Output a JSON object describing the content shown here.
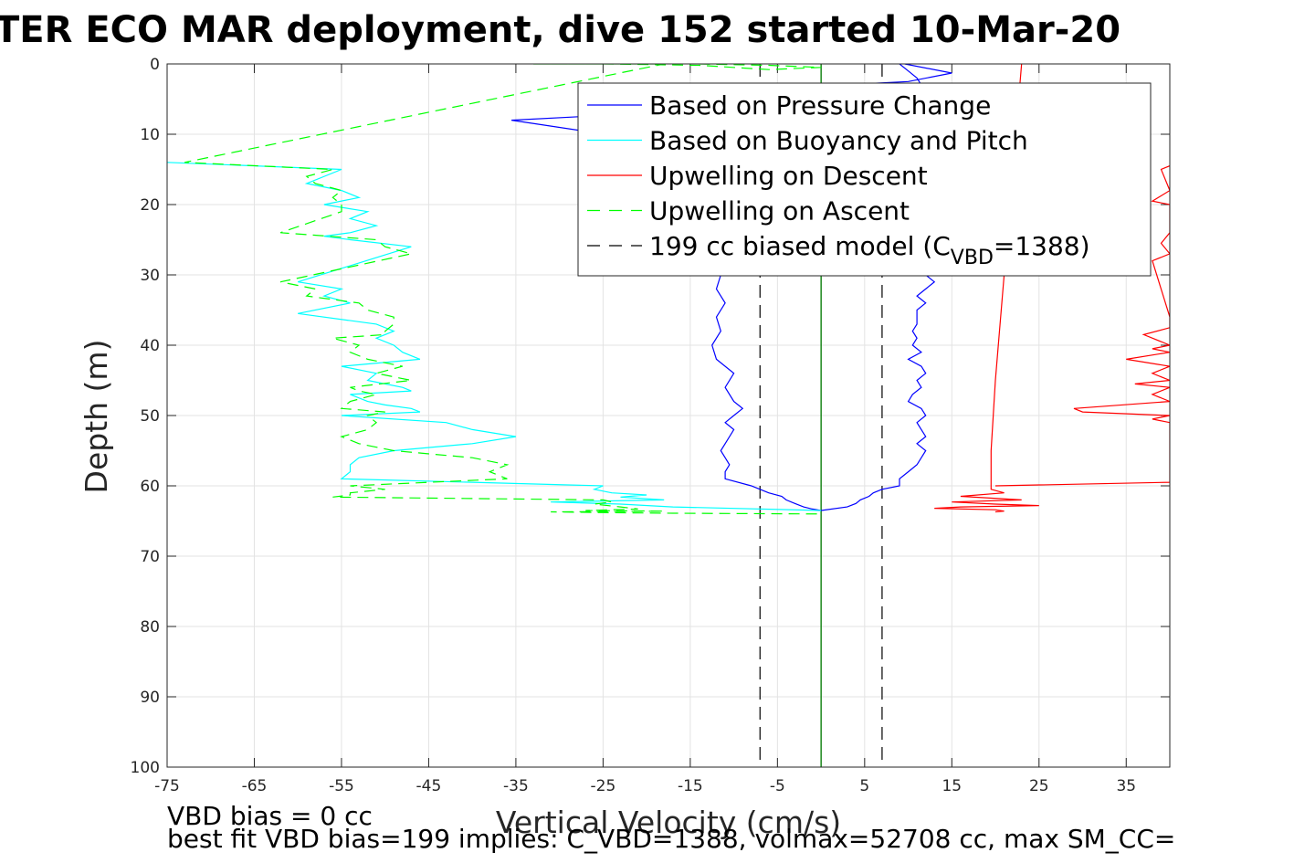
{
  "chart_data": {
    "type": "line",
    "title": "TER ECO MAR deployment, dive 152 started 10-Mar-20",
    "xlabel": "Vertical Velocity (cm/s)",
    "ylabel": "Depth (m)",
    "xlim": [
      -75,
      40
    ],
    "ylim": [
      0,
      100
    ],
    "y_reversed": true,
    "grid": true,
    "xticks": [
      -75,
      -65,
      -55,
      -45,
      -35,
      -25,
      -15,
      -5,
      5,
      15,
      25,
      35
    ],
    "yticks": [
      0,
      10,
      20,
      30,
      40,
      50,
      60,
      70,
      80,
      90,
      100
    ],
    "legend": {
      "placement": "top-right",
      "entries": [
        {
          "label": "Based on Pressure Change",
          "color": "#0000ff",
          "dash": "solid"
        },
        {
          "label": "Based on Buoyancy and Pitch",
          "color": "#00ffff",
          "dash": "solid"
        },
        {
          "label": "Upwelling on Descent",
          "color": "#ff0000",
          "dash": "solid"
        },
        {
          "label": "Upwelling on Ascent",
          "color": "#00ff00",
          "dash": "dashed"
        },
        {
          "label": "199 cc biased model (C",
          "sub": "VBD",
          "suffix": "=1388)",
          "color": "#000000",
          "dash": "dashed"
        }
      ]
    },
    "series": [
      {
        "name": "Based on Pressure Change",
        "color": "#0000ff",
        "dash": "solid",
        "x": [
          9.6,
          15,
          10,
          2,
          4,
          1,
          -3,
          -12,
          -35.5,
          -14,
          -12,
          -12,
          -12,
          -12,
          -11.5,
          -12,
          -11,
          -12,
          -11.5,
          -12.5,
          -12,
          -10,
          -11,
          -10,
          -9,
          -10,
          -11,
          -10,
          -11,
          -11.5,
          -11,
          -10.5,
          -11,
          -11,
          -8,
          -6,
          -4.5,
          -4,
          -3,
          -2,
          -1,
          0
        ],
        "y": [
          0,
          1.3,
          2.5,
          3,
          4,
          5,
          6,
          6.5,
          8,
          12,
          14,
          18,
          22,
          26,
          30,
          32,
          34,
          36,
          38,
          40,
          42,
          44,
          46,
          48,
          49,
          50,
          51,
          52,
          54,
          55,
          56,
          57,
          58,
          59,
          60,
          61,
          61.5,
          62,
          62.5,
          63,
          63.3,
          63.5
        ]
      },
      {
        "name": "Based on Pressure Change (ascent)",
        "color": "#0000ff",
        "dash": "solid",
        "x": [
          0,
          3,
          4,
          4.5,
          5.5,
          6,
          7,
          9,
          9,
          10,
          11,
          11.5,
          12,
          11,
          12,
          11.5,
          11,
          12,
          11.5,
          10,
          10.5,
          11.5,
          11,
          12,
          11.5,
          10,
          11.5,
          10.5,
          11,
          10.5,
          11,
          11,
          11,
          12,
          11,
          12,
          13,
          12,
          11,
          13,
          12,
          14,
          15,
          13,
          14,
          12,
          11,
          10,
          9
        ],
        "y": [
          63.5,
          63,
          62.5,
          62,
          61.5,
          61,
          60.5,
          60,
          59,
          58,
          57,
          56,
          55,
          54,
          53,
          52,
          51,
          50,
          49,
          48,
          47,
          46,
          45,
          44,
          43,
          42,
          41,
          40,
          39,
          38,
          37,
          36,
          35,
          34,
          33,
          32,
          31,
          30,
          25,
          20,
          15,
          12,
          10,
          8,
          6,
          4,
          2,
          1,
          0
        ]
      },
      {
        "name": "Based on Buoyancy and Pitch",
        "color": "#00ffff",
        "dash": "solid",
        "x": [
          -75,
          -55,
          -59,
          -55,
          -53,
          -57,
          -52,
          -54,
          -51,
          -54,
          -57,
          -54,
          -47,
          -60,
          -55,
          -57,
          -54,
          -60,
          -51,
          -49,
          -51,
          -49,
          -48,
          -46,
          -55,
          -51,
          -52,
          -50,
          -48,
          -47,
          -54,
          -52,
          -50,
          -47,
          -46,
          -55,
          -43,
          -40,
          -35,
          -40,
          -49,
          -53,
          -54,
          -54,
          -55,
          -25,
          -26,
          -24,
          -20,
          -23,
          -18,
          -31,
          -23,
          -17,
          0
        ],
        "y": [
          14,
          15,
          17,
          18,
          19,
          20,
          21,
          22,
          23,
          24,
          24.5,
          25,
          26,
          31,
          32,
          33,
          34,
          35.5,
          37,
          38,
          39,
          40,
          41,
          42,
          43,
          44,
          45,
          45.5,
          46,
          46.5,
          47,
          48,
          48.5,
          49,
          49.5,
          50,
          51,
          52,
          53,
          54,
          55,
          56,
          57,
          58,
          59,
          60,
          60.5,
          61,
          61.3,
          61.6,
          62,
          62.3,
          62.6,
          63,
          63.5
        ]
      },
      {
        "name": "Upwelling on Ascent",
        "color": "#00ff00",
        "dash": "dashed",
        "x": [
          -14,
          -6,
          0,
          -6,
          -14,
          -25,
          -33,
          -18,
          -73,
          -56,
          -59,
          -58,
          -55,
          -56,
          -55,
          -55,
          -62,
          -51,
          -50,
          -47,
          -62,
          -58,
          -59,
          -53,
          -52,
          -49,
          -49,
          -50,
          -50,
          -56,
          -53,
          -54,
          -52,
          -48,
          -51,
          -47,
          -54,
          -53,
          -51,
          -54,
          -55,
          -50,
          -52,
          -51,
          -52,
          -55,
          -53,
          -49,
          -40,
          -36,
          -38,
          -36,
          -54,
          -50,
          -54,
          -54,
          -56,
          -25,
          -24,
          -26,
          -23,
          -21,
          -27,
          -18,
          -31,
          -25,
          -17,
          0
        ],
        "y": [
          0,
          0.2,
          0.5,
          0.8,
          0.2,
          0,
          0,
          0,
          14,
          15,
          16,
          17,
          18,
          19,
          20,
          21,
          24,
          25,
          26,
          27,
          31,
          32,
          33,
          34,
          35,
          36,
          37,
          38,
          38.5,
          39,
          40,
          41,
          42,
          43,
          44,
          45,
          46,
          46.5,
          47,
          48,
          49,
          49.5,
          50,
          51,
          52,
          53,
          54,
          55,
          56,
          57,
          58,
          59,
          60,
          60.5,
          61,
          61.3,
          61.6,
          62,
          62.3,
          62.6,
          63,
          63.3,
          63.5,
          63.6,
          63.7,
          63.8,
          63.9,
          64
        ]
      },
      {
        "name": "Upwelling on Descent",
        "color": "#ff0000",
        "dash": "solid",
        "x": [
          23,
          22,
          21,
          20,
          19.5,
          19.5,
          21,
          16,
          23,
          15,
          20,
          25,
          16,
          13,
          20,
          21,
          20
        ],
        "y": [
          0,
          15,
          30,
          45,
          55,
          60.5,
          61,
          61.5,
          62,
          62.3,
          62.6,
          62.8,
          63,
          63.2,
          63.4,
          63.6,
          63.7
        ]
      },
      {
        "name": "Upwelling on Descent (ascent)",
        "color": "#ff0000",
        "dash": "solid",
        "x": [
          20,
          40,
          40,
          38,
          40,
          30,
          29,
          40,
          38,
          40,
          36,
          40,
          38,
          40,
          35,
          40,
          38,
          40,
          37,
          40,
          40,
          38,
          40,
          39,
          40,
          40,
          40,
          38,
          40,
          39,
          40
        ],
        "y": [
          60,
          59.5,
          51,
          50.5,
          50,
          49.5,
          49,
          48,
          47,
          46,
          45.5,
          45,
          44,
          43,
          42,
          41,
          40.5,
          40,
          38.5,
          37.5,
          36,
          28,
          27,
          25.5,
          24,
          22,
          20,
          19.5,
          18,
          15,
          14.5
        ]
      }
    ],
    "reference_lines": [
      {
        "x": -7,
        "color": "#000000",
        "dash": "dashed"
      },
      {
        "x": 7,
        "color": "#000000",
        "dash": "dashed"
      },
      {
        "x": 0,
        "color": "#000000",
        "dash": "solid"
      },
      {
        "x": 0,
        "color": "#008800",
        "dash": "solid"
      }
    ],
    "footnotes": [
      "VBD bias = 0 cc",
      "best fit VBD bias=199 implies: C_VBD=1388, volmax=52708 cc, max SM_CC="
    ]
  }
}
